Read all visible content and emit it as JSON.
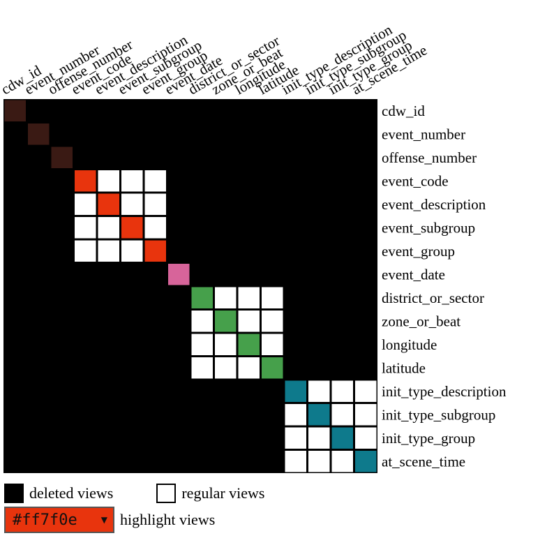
{
  "chart_data": {
    "type": "heatmap",
    "variables": [
      "cdw_id",
      "event_number",
      "offense_number",
      "event_code",
      "event_description",
      "event_subgroup",
      "event_group",
      "event_date",
      "district_or_sector",
      "zone_or_beat",
      "longitude",
      "latitude",
      "init_type_description",
      "init_type_subgroup",
      "init_type_group",
      "at_scene_time"
    ],
    "groups": [
      {
        "members": [
          0
        ],
        "color": "#3a1a14"
      },
      {
        "members": [
          1
        ],
        "color": "#3a1a14"
      },
      {
        "members": [
          2
        ],
        "color": "#3a1a14"
      },
      {
        "members": [
          3,
          4,
          5,
          6
        ],
        "color": "#e8340d"
      },
      {
        "members": [
          7
        ],
        "color": "#d7649a"
      },
      {
        "members": [
          8,
          9,
          10,
          11
        ],
        "color": "#46a04b"
      },
      {
        "members": [
          12,
          13,
          14,
          15
        ],
        "color": "#0e7a8c"
      }
    ],
    "background_color": "#000000",
    "regular_color": "#ffffff"
  },
  "legend": {
    "deleted_label": "deleted views",
    "regular_label": "regular views"
  },
  "highlight": {
    "selected_value": "#ff7f0e",
    "label": "highlight views",
    "box_color": "#e8340d"
  }
}
